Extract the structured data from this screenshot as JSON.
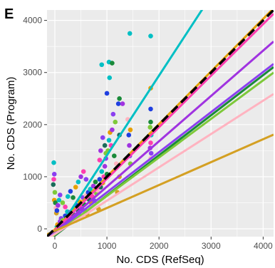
{
  "chart_data": {
    "type": "scatter",
    "panel_label": "E",
    "title": "",
    "xlabel": "No. CDS (RefSeq)",
    "ylabel": "No. CDS (Program)",
    "xlim": [
      -150,
      4200
    ],
    "ylim": [
      -150,
      4200
    ],
    "x_ticks": [
      0,
      1000,
      2000,
      3000,
      4000
    ],
    "y_ticks": [
      0,
      1000,
      2000,
      3000,
      4000
    ],
    "grid": true,
    "legend": "none",
    "panel_background": "#ebebeb",
    "grid_color": "#ffffff",
    "reference_line": {
      "style": "dashed",
      "color": "#000000",
      "slope": 1,
      "intercept": 0
    },
    "series": [
      {
        "color": "#00bfc4",
        "fit": {
          "slope": 1.53,
          "intercept": -120
        }
      },
      {
        "color": "#e6a000",
        "fit": {
          "slope": 1.01,
          "intercept": -10
        }
      },
      {
        "color": "#ff3dae",
        "fit": {
          "slope": 0.99,
          "intercept": -30
        }
      },
      {
        "color": "#a033e0",
        "fit": {
          "slope": 0.87,
          "intercept": -60
        }
      },
      {
        "color": "#8b3ff0",
        "fit": {
          "slope": 0.77,
          "intercept": -70
        }
      },
      {
        "color": "#1a8a3a",
        "fit": {
          "slope": 0.77,
          "intercept": -130
        }
      },
      {
        "color": "#7ec93a",
        "fit": {
          "slope": 0.74,
          "intercept": -110
        }
      },
      {
        "color": "#ffb3c0",
        "fit": {
          "slope": 0.64,
          "intercept": -100
        }
      },
      {
        "color": "#d4a023",
        "fit": {
          "slope": 0.44,
          "intercept": -40
        }
      },
      {
        "color": "#1f3fe0",
        "fit": null
      },
      {
        "color": "#1a6b5a",
        "fit": null
      }
    ],
    "points": [
      [
        -80,
        -150,
        0
      ],
      [
        -60,
        -120,
        1
      ],
      [
        40,
        40,
        0
      ],
      [
        50,
        80,
        1
      ],
      [
        80,
        60,
        2
      ],
      [
        100,
        140,
        3
      ],
      [
        120,
        200,
        4
      ],
      [
        130,
        100,
        5
      ],
      [
        150,
        160,
        6
      ],
      [
        160,
        120,
        7
      ],
      [
        180,
        80,
        8
      ],
      [
        200,
        250,
        9
      ],
      [
        220,
        210,
        10
      ],
      [
        240,
        330,
        0
      ],
      [
        260,
        180,
        1
      ],
      [
        280,
        260,
        2
      ],
      [
        300,
        320,
        3
      ],
      [
        320,
        150,
        4
      ],
      [
        340,
        290,
        5
      ],
      [
        360,
        380,
        6
      ],
      [
        380,
        230,
        7
      ],
      [
        400,
        160,
        8
      ],
      [
        420,
        450,
        9
      ],
      [
        440,
        360,
        10
      ],
      [
        460,
        300,
        0
      ],
      [
        480,
        520,
        1
      ],
      [
        500,
        420,
        2
      ],
      [
        520,
        380,
        3
      ],
      [
        540,
        600,
        4
      ],
      [
        560,
        470,
        5
      ],
      [
        580,
        350,
        6
      ],
      [
        600,
        640,
        7
      ],
      [
        620,
        280,
        8
      ],
      [
        640,
        700,
        9
      ],
      [
        660,
        560,
        10
      ],
      [
        680,
        760,
        0
      ],
      [
        700,
        500,
        1
      ],
      [
        720,
        620,
        2
      ],
      [
        740,
        820,
        3
      ],
      [
        760,
        540,
        4
      ],
      [
        780,
        900,
        5
      ],
      [
        800,
        680,
        6
      ],
      [
        820,
        740,
        7
      ],
      [
        840,
        380,
        8
      ],
      [
        860,
        950,
        9
      ],
      [
        880,
        800,
        10
      ],
      [
        900,
        1100,
        0
      ],
      [
        920,
        880,
        1
      ],
      [
        940,
        1000,
        2
      ],
      [
        960,
        1200,
        3
      ],
      [
        980,
        1350,
        4
      ],
      [
        1000,
        1050,
        5
      ],
      [
        1020,
        1500,
        6
      ],
      [
        1040,
        1700,
        0
      ],
      [
        1060,
        1850,
        1
      ],
      [
        1080,
        1600,
        2
      ],
      [
        1100,
        1900,
        3
      ],
      [
        1120,
        2200,
        4
      ],
      [
        1140,
        1400,
        5
      ],
      [
        1160,
        2050,
        6
      ],
      [
        1180,
        1250,
        7
      ],
      [
        1200,
        700,
        8
      ],
      [
        1220,
        2400,
        9
      ],
      [
        1240,
        1800,
        10
      ],
      [
        -20,
        1270,
        0
      ],
      [
        -10,
        1050,
        4
      ],
      [
        -20,
        950,
        2
      ],
      [
        -30,
        850,
        10
      ],
      [
        0,
        700,
        6
      ],
      [
        -10,
        550,
        1
      ],
      [
        10,
        500,
        5
      ],
      [
        20,
        400,
        7
      ],
      [
        30,
        300,
        8
      ],
      [
        40,
        350,
        9
      ],
      [
        60,
        450,
        3
      ],
      [
        80,
        550,
        0
      ],
      [
        100,
        650,
        4
      ],
      [
        150,
        500,
        6
      ],
      [
        200,
        420,
        2
      ],
      [
        250,
        620,
        0
      ],
      [
        300,
        720,
        9
      ],
      [
        350,
        600,
        5
      ],
      [
        400,
        800,
        1
      ],
      [
        450,
        900,
        0
      ],
      [
        500,
        1000,
        3
      ],
      [
        550,
        1100,
        2
      ],
      [
        600,
        950,
        4
      ],
      [
        900,
        3150,
        0
      ],
      [
        1040,
        3200,
        0
      ],
      [
        1100,
        3180,
        5
      ],
      [
        1440,
        3750,
        0
      ],
      [
        1840,
        3700,
        0
      ],
      [
        1050,
        2900,
        0
      ],
      [
        1000,
        2600,
        9
      ],
      [
        1240,
        2500,
        5
      ],
      [
        1300,
        2400,
        3
      ],
      [
        1400,
        2100,
        7
      ],
      [
        1450,
        1900,
        1
      ],
      [
        1420,
        1800,
        9
      ],
      [
        1430,
        1600,
        3
      ],
      [
        1440,
        1400,
        4
      ],
      [
        1450,
        1250,
        6
      ],
      [
        1840,
        2700,
        1
      ],
      [
        1840,
        2050,
        5
      ],
      [
        1830,
        1950,
        6
      ],
      [
        1850,
        1800,
        0
      ],
      [
        1840,
        1650,
        2
      ],
      [
        1830,
        1550,
        3
      ],
      [
        1850,
        1450,
        4
      ],
      [
        1840,
        1350,
        7
      ],
      [
        1840,
        2300,
        9
      ],
      [
        1240,
        1000,
        8
      ],
      [
        960,
        1600,
        10
      ],
      [
        920,
        1750,
        4
      ],
      [
        880,
        1500,
        3
      ],
      [
        860,
        1320,
        2
      ],
      [
        980,
        1450,
        6
      ]
    ]
  }
}
